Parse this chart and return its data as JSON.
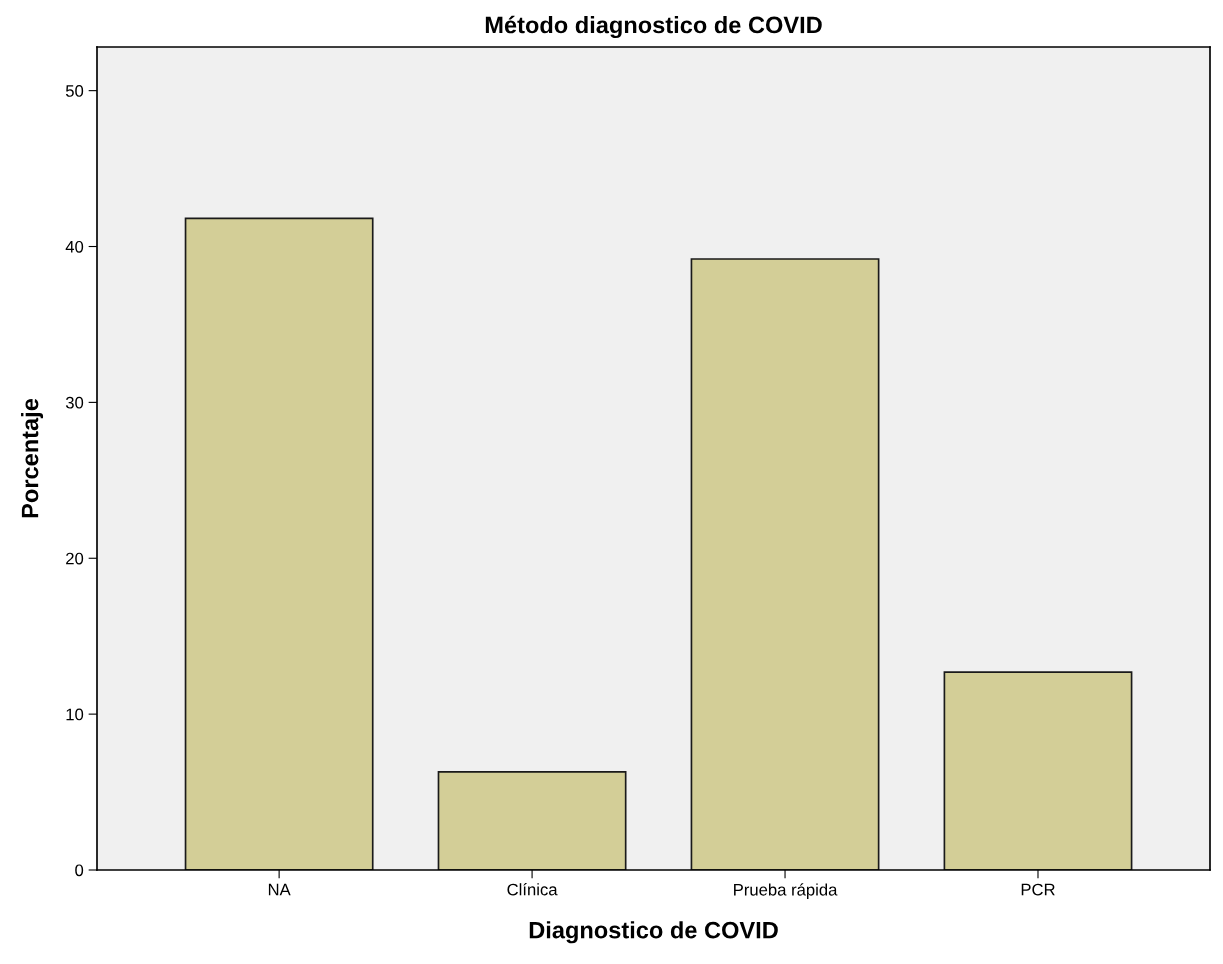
{
  "chart_data": {
    "type": "bar",
    "title": "Método diagnostico de COVID",
    "xlabel": "Diagnostico de COVID",
    "ylabel": "Porcentaje",
    "categories": [
      "NA",
      "Clínica",
      "Prueba rápida",
      "PCR"
    ],
    "values": [
      41.8,
      6.3,
      39.2,
      12.7
    ],
    "color": "#d3ce97",
    "ylim": [
      0,
      52.8
    ],
    "yticks": [
      0,
      10,
      20,
      30,
      40,
      50
    ],
    "grid": false,
    "legend": false
  }
}
